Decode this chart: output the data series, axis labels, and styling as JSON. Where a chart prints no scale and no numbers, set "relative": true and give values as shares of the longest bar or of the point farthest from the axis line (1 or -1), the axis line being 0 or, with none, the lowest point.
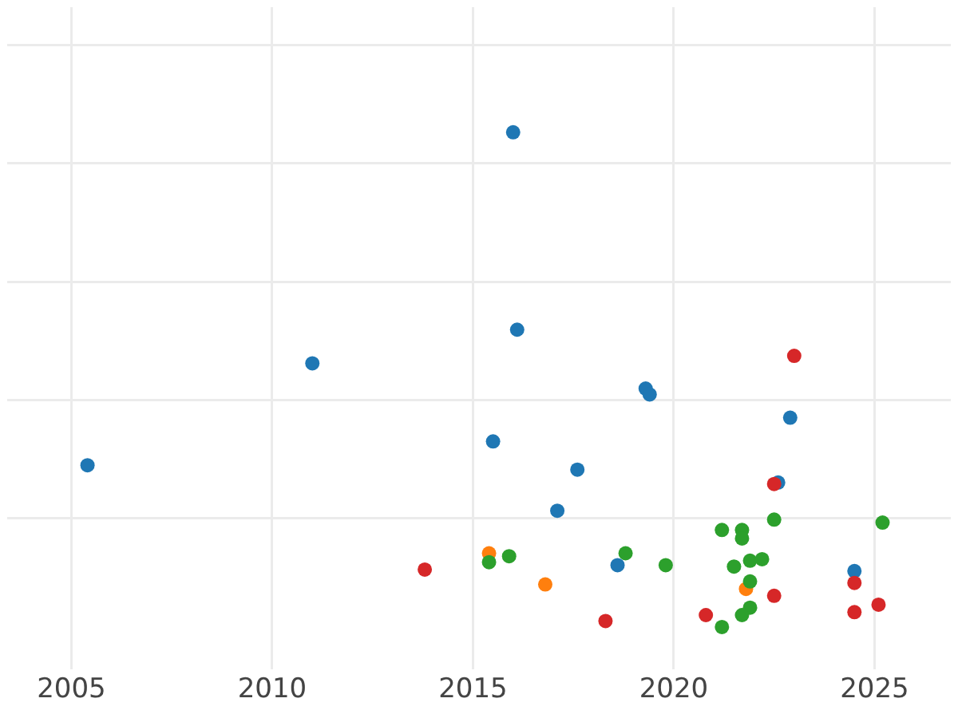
{
  "chart_data": {
    "type": "scatter",
    "relative": true,
    "grid": true,
    "legend": false,
    "marker": "circle",
    "xlim": [
      2003.4,
      2026.9
    ],
    "xticks": [
      2005,
      2010,
      2015,
      2020,
      2025
    ],
    "series": [
      {
        "color": "#1f77b4",
        "x": [
          2016.0,
          2005.4,
          2011.0,
          2016.1,
          2019.3,
          2019.4,
          2022.9,
          2015.5,
          2017.6,
          2017.1,
          2018.6,
          2022.6,
          2024.5
        ],
        "values": [
          1,
          0.327,
          0.533,
          0.601,
          0.482,
          0.47,
          0.423,
          0.375,
          0.318,
          0.235,
          0.125,
          0.292,
          0.113
        ]
      },
      {
        "color": "#d62728",
        "x": [
          2013.8,
          2023.0,
          2022.5,
          2018.3,
          2020.8,
          2022.5,
          2024.5,
          2024.5,
          2025.1
        ],
        "values": [
          0.116,
          0.548,
          0.289,
          0.012,
          0.024,
          0.063,
          0.089,
          0.03,
          0.045
        ]
      },
      {
        "color": "#ff7f0e",
        "x": [
          2015.4,
          2016.8,
          2021.8
        ],
        "values": [
          0.149,
          0.086,
          0.077
        ]
      },
      {
        "color": "#2ca02c",
        "x": [
          2015.4,
          2015.9,
          2018.8,
          2019.8,
          2021.2,
          2021.7,
          2021.7,
          2022.5,
          2025.2,
          2021.5,
          2021.9,
          2022.2,
          2021.9,
          2021.9,
          2021.7,
          2021.2
        ],
        "values": [
          0.131,
          0.143,
          0.149,
          0.125,
          0.196,
          0.196,
          0.179,
          0.217,
          0.211,
          0.122,
          0.134,
          0.137,
          0.092,
          0.039,
          0.024,
          0
        ]
      }
    ]
  }
}
